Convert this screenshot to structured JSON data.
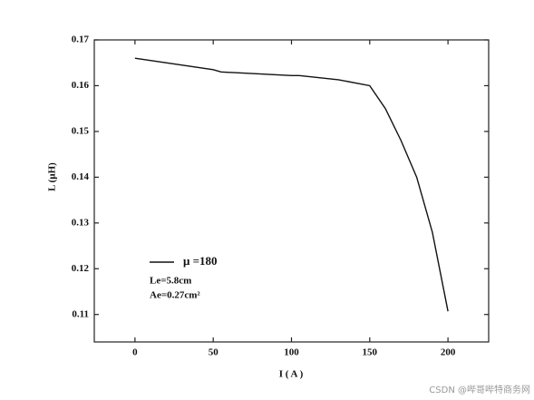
{
  "chart_data": {
    "type": "line",
    "xlabel": "I ( A )",
    "ylabel": "L (μH)",
    "x": [
      0,
      50,
      55,
      100,
      105,
      130,
      150,
      160,
      170,
      180,
      190,
      200
    ],
    "series": [
      {
        "name": "μ =180",
        "color": "#111111",
        "values": [
          0.166,
          0.1635,
          0.163,
          0.1622,
          0.1622,
          0.1613,
          0.16,
          0.155,
          0.148,
          0.14,
          0.128,
          0.1107
        ]
      }
    ],
    "annotations": [
      "Le=5.8cm",
      "Ae=0.27cm²"
    ],
    "xlim": [
      -26,
      226
    ],
    "xticks": [
      0,
      50,
      100,
      150,
      200
    ],
    "ylim": [
      0.104,
      0.17
    ],
    "yticks": [
      {
        "value": 0.11,
        "label": "0.11"
      },
      {
        "value": 0.12,
        "label": "0.12"
      },
      {
        "value": 0.13,
        "label": "0.13"
      },
      {
        "value": 0.14,
        "label": "0.14"
      },
      {
        "value": 0.15,
        "label": "0.15"
      },
      {
        "value": 0.16,
        "label": "0.16"
      },
      {
        "value": 0.17,
        "label": "0.17"
      }
    ],
    "grid": false,
    "legend": "lower left",
    "watermark": "CSDN @哔哥哔特商务网"
  }
}
